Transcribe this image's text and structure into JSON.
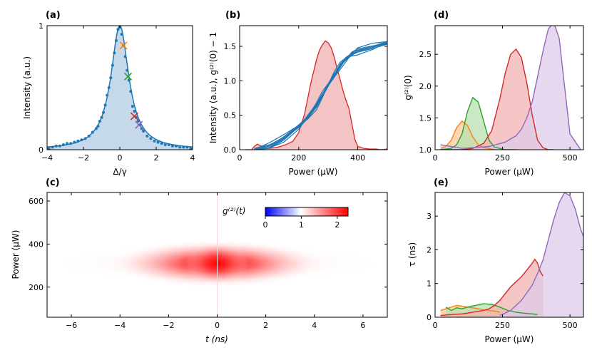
{
  "colors": {
    "blue": "#1f77b4",
    "orange": "#ff7f0e",
    "green": "#2ca02c",
    "red": "#d62728",
    "purple": "#9467bd",
    "fill_blue": "#c5d9ea",
    "fill_red": "#f4c3c3"
  },
  "chart_data": [
    {
      "panel": "(a)",
      "type": "line",
      "xlabel": "Δ/γ",
      "ylabel": "Intensity (a.u.)",
      "xlim": [
        -4,
        4
      ],
      "ylim": [
        0,
        1
      ],
      "xticks": [
        -4,
        -2,
        0,
        2,
        4
      ],
      "xtick_labels": [
        "−4",
        "−2",
        "0",
        "2",
        "4"
      ],
      "yticks": [
        0,
        1
      ],
      "ytick_labels": [
        "0",
        "1"
      ],
      "fit_halfwidth": 0.6,
      "scatter": {
        "x": [
          -3.9,
          -3.7,
          -3.5,
          -3.3,
          -3.1,
          -2.9,
          -2.7,
          -2.5,
          -2.3,
          -2.1,
          -1.9,
          -1.7,
          -1.5,
          -1.3,
          -1.2,
          -1.1,
          -1.0,
          -0.9,
          -0.8,
          -0.7,
          -0.6,
          -0.5,
          -0.4,
          -0.3,
          -0.2,
          -0.1,
          0.0,
          0.1,
          0.2,
          0.3,
          0.4,
          0.5,
          0.6,
          0.7,
          0.8,
          0.9,
          1.0,
          1.1,
          1.2,
          1.3,
          1.5,
          1.7,
          1.9,
          2.1,
          2.3,
          2.5,
          2.7,
          2.9,
          3.1,
          3.3,
          3.5,
          3.7,
          3.9
        ],
        "y": [
          0.01,
          0.02,
          0.03,
          0.03,
          0.04,
          0.05,
          0.05,
          0.06,
          0.07,
          0.08,
          0.09,
          0.11,
          0.14,
          0.17,
          0.19,
          0.23,
          0.26,
          0.3,
          0.36,
          0.44,
          0.5,
          0.58,
          0.68,
          0.78,
          0.88,
          0.97,
          0.99,
          0.93,
          0.84,
          0.75,
          0.64,
          0.56,
          0.47,
          0.35,
          0.31,
          0.26,
          0.23,
          0.2,
          0.17,
          0.15,
          0.11,
          0.09,
          0.07,
          0.06,
          0.05,
          0.04,
          0.04,
          0.03,
          0.03,
          0.02,
          0.02,
          0.02,
          0.01
        ]
      },
      "markers": [
        {
          "x": 0.2,
          "y": 0.84,
          "color": "orange"
        },
        {
          "x": 0.45,
          "y": 0.59,
          "color": "green"
        },
        {
          "x": 0.8,
          "y": 0.27,
          "color": "red"
        },
        {
          "x": 1.05,
          "y": 0.2,
          "color": "purple"
        }
      ]
    },
    {
      "panel": "(b)",
      "type": "line",
      "xlabel": "Power (μW)",
      "ylabel": "Intensity (a.u.), g⁽²⁾(0) − 1",
      "xlim": [
        0,
        500
      ],
      "ylim": [
        0,
        1.8
      ],
      "xticks": [
        0,
        200,
        400
      ],
      "xtick_labels": [
        "0",
        "200",
        "400"
      ],
      "yticks": [
        0,
        0.5,
        1.0,
        1.5
      ],
      "ytick_labels": [
        "0.0",
        "0.5",
        "1.0",
        "1.5"
      ],
      "intensity_x": [
        50,
        100,
        150,
        200,
        230,
        260,
        280,
        300,
        320,
        340,
        360,
        380,
        400,
        450,
        500
      ],
      "intensity_y": [
        0.02,
        0.07,
        0.17,
        0.32,
        0.45,
        0.62,
        0.8,
        0.96,
        1.1,
        1.22,
        1.3,
        1.37,
        1.42,
        1.5,
        1.57
      ],
      "g2_x": [
        20,
        40,
        50,
        60,
        70,
        80,
        100,
        120,
        140,
        160,
        180,
        200,
        220,
        240,
        260,
        270,
        280,
        290,
        300,
        310,
        320,
        330,
        340,
        350,
        360,
        370,
        380,
        390,
        400,
        420,
        440,
        460,
        480,
        500
      ],
      "g2_y": [
        0,
        0,
        0.05,
        0.08,
        0.06,
        0.02,
        0.02,
        0.03,
        0.05,
        0.08,
        0.12,
        0.25,
        0.52,
        0.95,
        1.3,
        1.44,
        1.52,
        1.58,
        1.55,
        1.48,
        1.35,
        1.18,
        1.02,
        0.86,
        0.72,
        0.6,
        0.38,
        0.15,
        0.05,
        0.02,
        0.01,
        0.01,
        0,
        0.01
      ]
    },
    {
      "panel": "(d)",
      "type": "area",
      "xlabel": "Power (μW)",
      "ylabel": "g⁽²⁾(0)",
      "xlim": [
        0,
        550
      ],
      "ylim": [
        1.0,
        2.95
      ],
      "xticks": [
        0,
        250,
        500
      ],
      "xtick_labels": [
        "0",
        "250",
        "500"
      ],
      "yticks": [
        1.0,
        1.5,
        2.0,
        2.5
      ],
      "ytick_labels": [
        "1.0",
        "1.5",
        "2.0",
        "2.5"
      ],
      "series": [
        {
          "name": "orange",
          "x": [
            20,
            40,
            60,
            80,
            100,
            120,
            140,
            160,
            180,
            200,
            220
          ],
          "y": [
            1.02,
            1.05,
            1.15,
            1.35,
            1.45,
            1.38,
            1.2,
            1.08,
            1.03,
            1.02,
            1.0
          ]
        },
        {
          "name": "green",
          "x": [
            20,
            60,
            80,
            100,
            120,
            140,
            160,
            180,
            200,
            220,
            240,
            260,
            280,
            300
          ],
          "y": [
            1.0,
            1.02,
            1.08,
            1.25,
            1.6,
            1.82,
            1.75,
            1.45,
            1.15,
            1.04,
            1.02,
            1.0,
            1.0,
            1.0
          ]
        },
        {
          "name": "red",
          "x": [
            20,
            60,
            100,
            140,
            180,
            210,
            240,
            260,
            280,
            300,
            320,
            340,
            360,
            380,
            400,
            420,
            440
          ],
          "y": [
            1.0,
            1.0,
            1.0,
            1.02,
            1.1,
            1.3,
            1.8,
            2.2,
            2.5,
            2.58,
            2.45,
            2.05,
            1.55,
            1.15,
            1.03,
            1.0,
            1.0
          ]
        },
        {
          "name": "purple",
          "x": [
            20,
            100,
            200,
            260,
            300,
            320,
            340,
            360,
            380,
            400,
            420,
            440,
            460,
            480,
            500,
            540
          ],
          "y": [
            1.08,
            1.02,
            1.05,
            1.12,
            1.22,
            1.32,
            1.5,
            1.75,
            2.15,
            2.55,
            2.9,
            3.0,
            2.75,
            2.0,
            1.25,
            1.0
          ]
        }
      ]
    },
    {
      "panel": "(c)",
      "type": "heatmap",
      "xlabel": "t (ns)",
      "ylabel": "Power (μW)",
      "xlim": [
        -7,
        7
      ],
      "ylim": [
        60,
        640
      ],
      "xticks": [
        -6,
        -4,
        -2,
        0,
        2,
        4,
        6
      ],
      "xtick_labels": [
        "−6",
        "−4",
        "−2",
        "0",
        "2",
        "4",
        "6"
      ],
      "yticks": [
        200,
        400,
        600
      ],
      "ytick_labels": [
        "200",
        "400",
        "600"
      ],
      "peak": {
        "t": 0,
        "power": 310,
        "value": 2.3
      },
      "colorbar": {
        "label": "g⁽²⁾(t)",
        "min": 0,
        "max": 2.3,
        "ticks": [
          0,
          1,
          2
        ],
        "tick_labels": [
          "0",
          "1",
          "2"
        ]
      }
    },
    {
      "panel": "(e)",
      "type": "area",
      "xlabel": "Power (μW)",
      "ylabel": "τ (ns)",
      "xlim": [
        0,
        550
      ],
      "ylim": [
        0,
        3.7
      ],
      "xticks": [
        0,
        250,
        500
      ],
      "xtick_labels": [
        "0",
        "250",
        "500"
      ],
      "yticks": [
        0,
        1,
        2,
        3
      ],
      "ytick_labels": [
        "0",
        "1",
        "2",
        "3"
      ],
      "series": [
        {
          "name": "orange",
          "x": [
            20,
            40,
            60,
            80,
            100,
            120,
            140,
            160,
            180,
            200,
            220,
            240
          ],
          "y": [
            0.2,
            0.25,
            0.3,
            0.35,
            0.33,
            0.3,
            0.28,
            0.25,
            0.22,
            0.2,
            0.18,
            0.15
          ]
        },
        {
          "name": "green",
          "x": [
            40,
            60,
            80,
            100,
            120,
            150,
            180,
            210,
            240,
            270,
            300,
            330,
            360,
            380
          ],
          "y": [
            0.3,
            0.2,
            0.28,
            0.25,
            0.3,
            0.35,
            0.4,
            0.38,
            0.3,
            0.2,
            0.15,
            0.12,
            0.1,
            0.08
          ]
        },
        {
          "name": "red",
          "x": [
            20,
            60,
            100,
            140,
            180,
            200,
            220,
            240,
            260,
            280,
            300,
            320,
            340,
            360,
            370,
            380,
            390,
            400
          ],
          "y": [
            0.05,
            0.08,
            0.1,
            0.15,
            0.2,
            0.25,
            0.35,
            0.5,
            0.7,
            0.9,
            1.05,
            1.2,
            1.4,
            1.6,
            1.72,
            1.6,
            1.35,
            1.22
          ]
        },
        {
          "name": "purple",
          "x": [
            240,
            280,
            320,
            360,
            380,
            400,
            420,
            440,
            460,
            480,
            500,
            520,
            540,
            550
          ],
          "y": [
            0.05,
            0.2,
            0.5,
            0.95,
            1.3,
            1.7,
            2.3,
            2.9,
            3.4,
            3.7,
            3.6,
            3.2,
            2.6,
            2.4
          ]
        }
      ]
    }
  ]
}
